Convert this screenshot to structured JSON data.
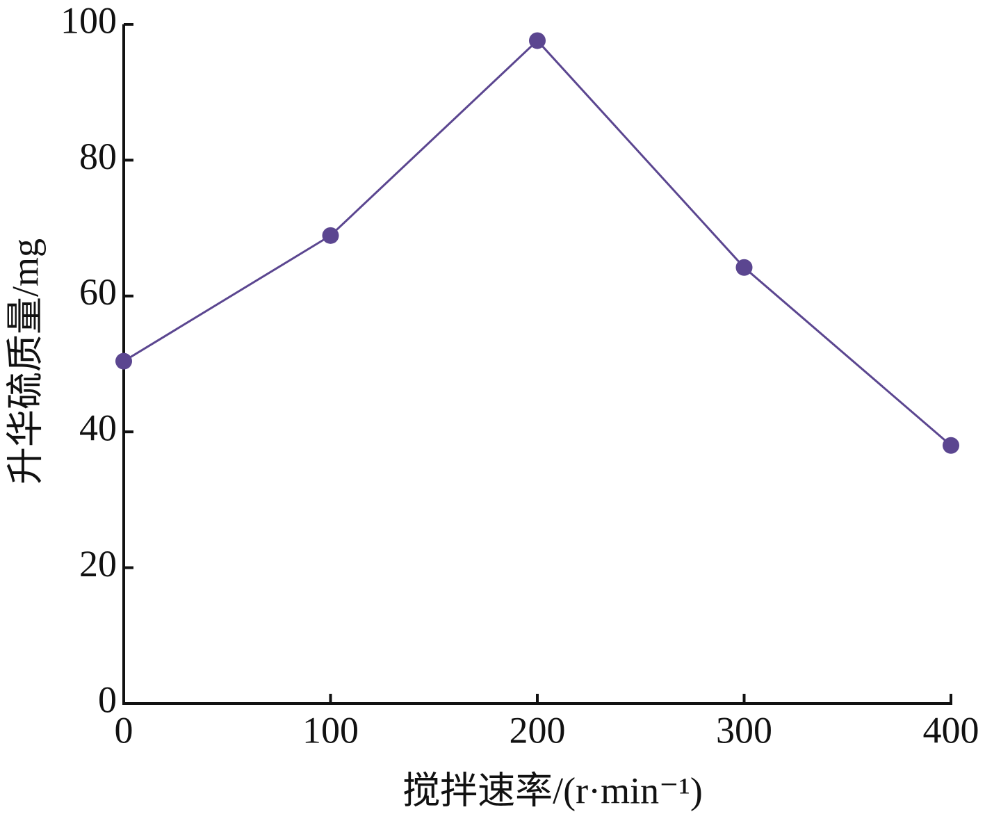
{
  "chart_data": {
    "type": "line",
    "x_label": "搅拌速率/(r·min⁻¹)",
    "y_label": "升华硫质量/mg",
    "x": [
      0,
      100,
      200,
      300,
      400
    ],
    "series": [
      {
        "color": "#5b4690",
        "values": [
          50.4,
          68.9,
          97.6,
          64.2,
          38.0
        ]
      }
    ],
    "xlim": [
      0,
      400
    ],
    "xticks": [
      0,
      100,
      200,
      300,
      400
    ],
    "ylim": [
      0,
      100
    ],
    "yticks": [
      0,
      20,
      40,
      60,
      80,
      100
    ]
  }
}
